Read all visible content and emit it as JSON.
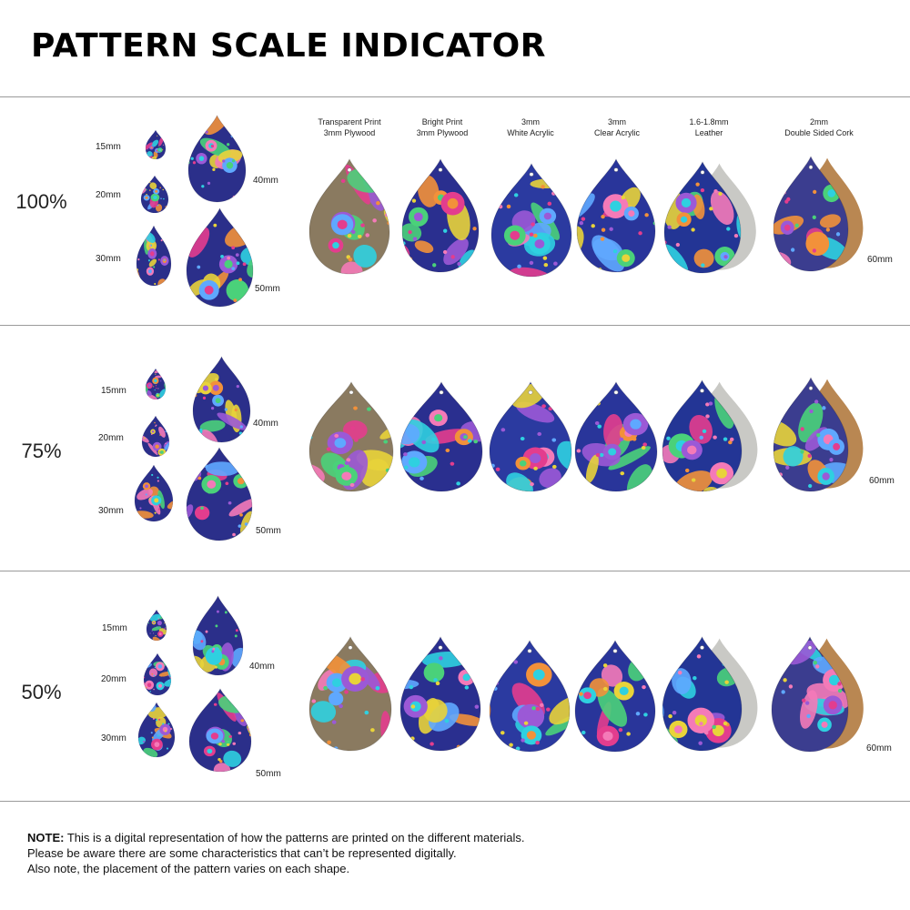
{
  "title": "PATTERN SCALE INDICATOR",
  "materials": [
    {
      "line1": "Transparent Print",
      "line2": "3mm Plywood",
      "backing": "none",
      "tint": "#8a7a60"
    },
    {
      "line1": "Bright Print",
      "line2": "3mm Plywood",
      "backing": "none",
      "tint": "#2a2f8f"
    },
    {
      "line1": "3mm",
      "line2": "White Acrylic",
      "backing": "none",
      "tint": "#2b3aa0"
    },
    {
      "line1": "3mm",
      "line2": "Clear Acrylic",
      "backing": "none",
      "tint": "#29359a"
    },
    {
      "line1": "1.6-1.8mm",
      "line2": "Leather",
      "backing": "#c9c9c5",
      "tint": "#233595"
    },
    {
      "line1": "2mm",
      "line2": "Double Sided Cork",
      "backing": "#b98752",
      "tint": "#3b3d8f"
    }
  ],
  "sections": [
    {
      "scale": "100%",
      "labels": {
        "s15": "15mm",
        "s20": "20mm",
        "s30": "30mm",
        "s40": "40mm",
        "s50": "50mm",
        "s60": "60mm"
      }
    },
    {
      "scale": "75%",
      "labels": {
        "s15": "15mm",
        "s20": "20mm",
        "s30": "30mm",
        "s40": "40mm",
        "s50": "50mm",
        "s60": "60mm"
      }
    },
    {
      "scale": "50%",
      "labels": {
        "s15": "15mm",
        "s20": "20mm",
        "s30": "30mm",
        "s40": "40mm",
        "s50": "50mm",
        "s60": "60mm"
      }
    }
  ],
  "palette": [
    "#e8d33a",
    "#f47ab8",
    "#2fd0e0",
    "#9b59d6",
    "#f2913a",
    "#4ad17a",
    "#e33d8e",
    "#5fa8ff"
  ],
  "note": {
    "label": "NOTE:",
    "line1": " This is a digital representation of how the patterns are printed on the different materials.",
    "line2": "Please be aware there are some characteristics that can’t be represented digitally.",
    "line3": "Also note, the placement of the pattern varies on each shape."
  }
}
